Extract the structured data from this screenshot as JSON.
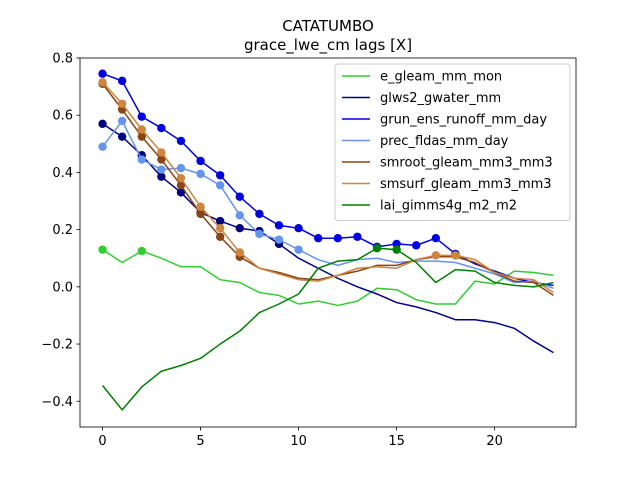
{
  "chart_data": {
    "type": "line",
    "title": "CATATUMBO",
    "subtitle": "grace_lwe_cm lags [X]",
    "xlim": [
      -1.15,
      24.15
    ],
    "ylim": [
      -0.49,
      0.8
    ],
    "xticks": [
      0,
      5,
      10,
      15,
      20
    ],
    "yticks": [
      -0.4,
      -0.2,
      0.0,
      0.2,
      0.4,
      0.6,
      0.8
    ],
    "ytick_labels": [
      "−0.4",
      "−0.2",
      "0.0",
      "0.2",
      "0.4",
      "0.6",
      "0.8"
    ],
    "legend_position": "upper-right",
    "x": [
      0,
      1,
      2,
      3,
      4,
      5,
      6,
      7,
      8,
      9,
      10,
      11,
      12,
      13,
      14,
      15,
      16,
      17,
      18,
      19,
      20,
      21,
      22,
      23
    ],
    "series": [
      {
        "name": "e_gleam_mm_mon",
        "color": "#32cd32",
        "values": [
          0.13,
          0.085,
          0.125,
          0.1,
          0.07,
          0.07,
          0.025,
          0.015,
          -0.02,
          -0.03,
          -0.06,
          -0.05,
          -0.065,
          -0.05,
          -0.005,
          -0.01,
          -0.045,
          -0.06,
          -0.06,
          0.02,
          0.01,
          0.055,
          0.05,
          0.04
        ],
        "markers": [
          0,
          2
        ]
      },
      {
        "name": "glws2_gwater_mm",
        "color": "#000080",
        "values": [
          0.57,
          0.525,
          0.46,
          0.385,
          0.33,
          0.26,
          0.23,
          0.205,
          0.195,
          0.15,
          0.1,
          0.065,
          0.03,
          0.0,
          -0.025,
          -0.055,
          -0.07,
          -0.09,
          -0.115,
          -0.115,
          -0.125,
          -0.145,
          -0.19,
          -0.23
        ],
        "markers": [
          0,
          1,
          2,
          3,
          4,
          5,
          6,
          7,
          8,
          9
        ]
      },
      {
        "name": "grun_ens_runoff_mm_day",
        "color": "#0000e0",
        "values": [
          0.745,
          0.72,
          0.595,
          0.555,
          0.51,
          0.44,
          0.39,
          0.315,
          0.255,
          0.215,
          0.205,
          0.17,
          0.17,
          0.175,
          0.14,
          0.15,
          0.145,
          0.17,
          0.115,
          0.08,
          0.055,
          0.03,
          0.015,
          0.005
        ],
        "markers": [
          0,
          1,
          2,
          3,
          4,
          5,
          6,
          7,
          8,
          9,
          10,
          11,
          12,
          13,
          14,
          15,
          16,
          17,
          18
        ]
      },
      {
        "name": "prec_fldas_mm_day",
        "color": "#6495ed",
        "values": [
          0.49,
          0.58,
          0.445,
          0.41,
          0.415,
          0.395,
          0.355,
          0.25,
          0.185,
          0.165,
          0.13,
          0.095,
          0.075,
          0.095,
          0.1,
          0.085,
          0.09,
          0.09,
          0.085,
          0.065,
          0.045,
          0.015,
          0.02,
          -0.005
        ],
        "markers": [
          0,
          1,
          2,
          3,
          4,
          5,
          6,
          7,
          8,
          9,
          10
        ]
      },
      {
        "name": "smroot_gleam_mm3_mm3",
        "color": "#8b4513",
        "values": [
          0.71,
          0.62,
          0.525,
          0.445,
          0.355,
          0.255,
          0.175,
          0.105,
          0.065,
          0.05,
          0.03,
          0.025,
          0.04,
          0.055,
          0.075,
          0.075,
          0.095,
          0.105,
          0.105,
          0.085,
          0.05,
          0.02,
          0.015,
          -0.03
        ],
        "markers": [
          0,
          1,
          2,
          3,
          4,
          5,
          6,
          7
        ]
      },
      {
        "name": "smsurf_gleam_mm3_mm3",
        "color": "#cd853f",
        "values": [
          0.715,
          0.64,
          0.55,
          0.47,
          0.38,
          0.28,
          0.205,
          0.12,
          0.065,
          0.045,
          0.025,
          0.02,
          0.04,
          0.065,
          0.07,
          0.065,
          0.095,
          0.11,
          0.11,
          0.095,
          0.05,
          0.03,
          0.025,
          -0.02
        ],
        "markers": [
          0,
          1,
          2,
          3,
          4,
          5,
          6,
          7,
          17,
          18
        ]
      },
      {
        "name": "lai_gimms4g_m2_m2",
        "color": "#008000",
        "values": [
          -0.345,
          -0.43,
          -0.35,
          -0.295,
          -0.275,
          -0.25,
          -0.2,
          -0.155,
          -0.09,
          -0.06,
          -0.025,
          0.065,
          0.09,
          0.095,
          0.135,
          0.13,
          0.085,
          0.015,
          0.06,
          0.055,
          0.015,
          0.005,
          0.0,
          0.015
        ],
        "markers": [
          14,
          15
        ]
      }
    ]
  }
}
